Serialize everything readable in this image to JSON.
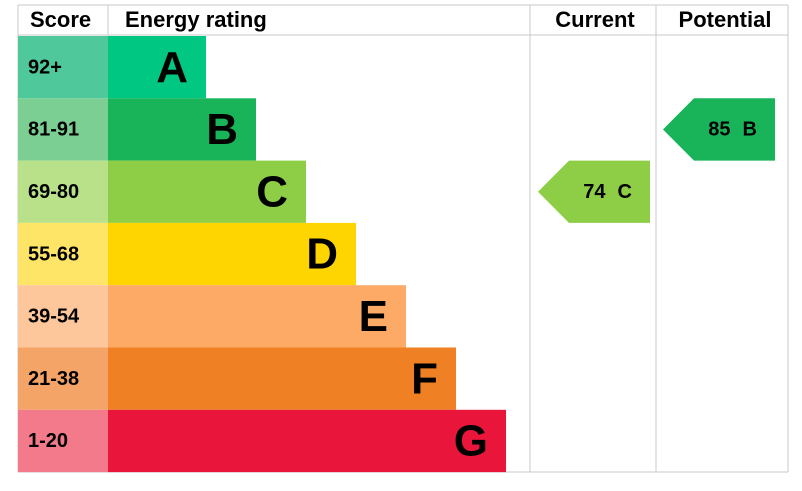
{
  "header": {
    "score": "Score",
    "energy_rating": "Energy rating",
    "current": "Current",
    "potential": "Potential"
  },
  "bands": [
    {
      "score": "92+",
      "rating": "A",
      "color": "#00c781",
      "score_color": "#4fc99b"
    },
    {
      "score": "81-91",
      "rating": "B",
      "color": "#19b459",
      "score_color": "#7ccf93"
    },
    {
      "score": "69-80",
      "rating": "C",
      "color": "#8dce46",
      "score_color": "#b9e18a"
    },
    {
      "score": "55-68",
      "rating": "D",
      "color": "#ffd500",
      "score_color": "#ffe567"
    },
    {
      "score": "39-54",
      "rating": "E",
      "color": "#fcaa65",
      "score_color": "#fdc79b"
    },
    {
      "score": "21-38",
      "rating": "F",
      "color": "#ef8023",
      "score_color": "#f4a466"
    },
    {
      "score": "1-20",
      "rating": "G",
      "color": "#e9153b",
      "score_color": "#f27a8a"
    }
  ],
  "current": {
    "score": 74,
    "rating": "C",
    "color": "#8dce46"
  },
  "potential": {
    "score": 85,
    "rating": "B",
    "color": "#19b459"
  }
}
